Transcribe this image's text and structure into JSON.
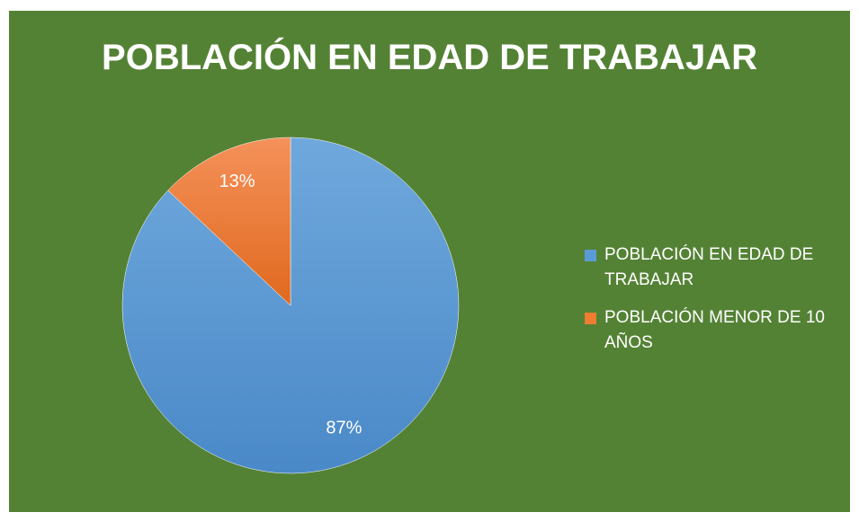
{
  "chart_data": {
    "type": "pie",
    "title": "POBLACIÓN EN EDAD DE TRABAJAR",
    "categories": [
      "POBLACIÓN EN EDAD DE TRABAJAR",
      "POBLACIÓN MENOR DE 10 AÑOS"
    ],
    "values": [
      87,
      13
    ],
    "value_labels": [
      "87%",
      "13%"
    ],
    "colors": [
      "#5b9bd5",
      "#ed7d31"
    ],
    "legend": "right"
  }
}
